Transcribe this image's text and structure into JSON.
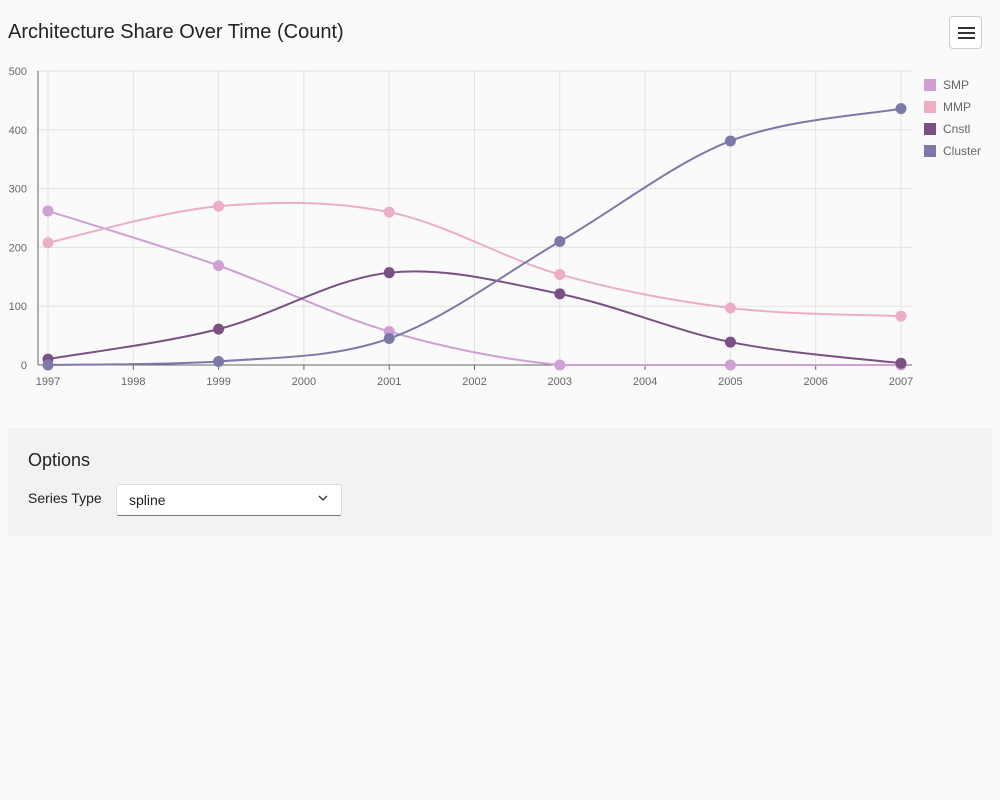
{
  "header": {
    "title": "Architecture Share Over Time (Count)",
    "menu_icon": "hamburger-menu-icon"
  },
  "options": {
    "title": "Options",
    "series_type_label": "Series Type",
    "series_type_value": "spline",
    "chevron_icon": "chevron-down-icon"
  },
  "chart_data": {
    "type": "line",
    "title": "Architecture Share Over Time (Count)",
    "xlabel": "",
    "ylabel": "",
    "x": [
      1997,
      1998,
      1999,
      2000,
      2001,
      2002,
      2003,
      2004,
      2005,
      2006,
      2007
    ],
    "x_ticks": [
      "1997",
      "1998",
      "1999",
      "2000",
      "2001",
      "2002",
      "2003",
      "2004",
      "2005",
      "2006",
      "2007"
    ],
    "xlim": [
      1997,
      2007
    ],
    "ylim": [
      0,
      500
    ],
    "y_ticks": [
      "0",
      "100",
      "200",
      "300",
      "400",
      "500"
    ],
    "grid": true,
    "legend_position": "right",
    "series": [
      {
        "name": "SMP",
        "color": "#d09fd3",
        "x": [
          1997,
          1999,
          2001,
          2003,
          2005,
          2007
        ],
        "values": [
          262,
          169,
          57,
          0,
          0,
          0
        ]
      },
      {
        "name": "MMP",
        "color": "#eeadc6",
        "x": [
          1997,
          1999,
          2001,
          2003,
          2005,
          2007
        ],
        "values": [
          208,
          270,
          260,
          154,
          97,
          83
        ]
      },
      {
        "name": "Cnstl",
        "color": "#795183",
        "x": [
          1997,
          1999,
          2001,
          2003,
          2005,
          2007
        ],
        "values": [
          10,
          61,
          157,
          121,
          39,
          3
        ]
      },
      {
        "name": "Cluster",
        "color": "#7c79a9",
        "x": [
          1997,
          1999,
          2001,
          2003,
          2005,
          2007
        ],
        "values": [
          0,
          6,
          45,
          210,
          381,
          436
        ]
      }
    ]
  }
}
